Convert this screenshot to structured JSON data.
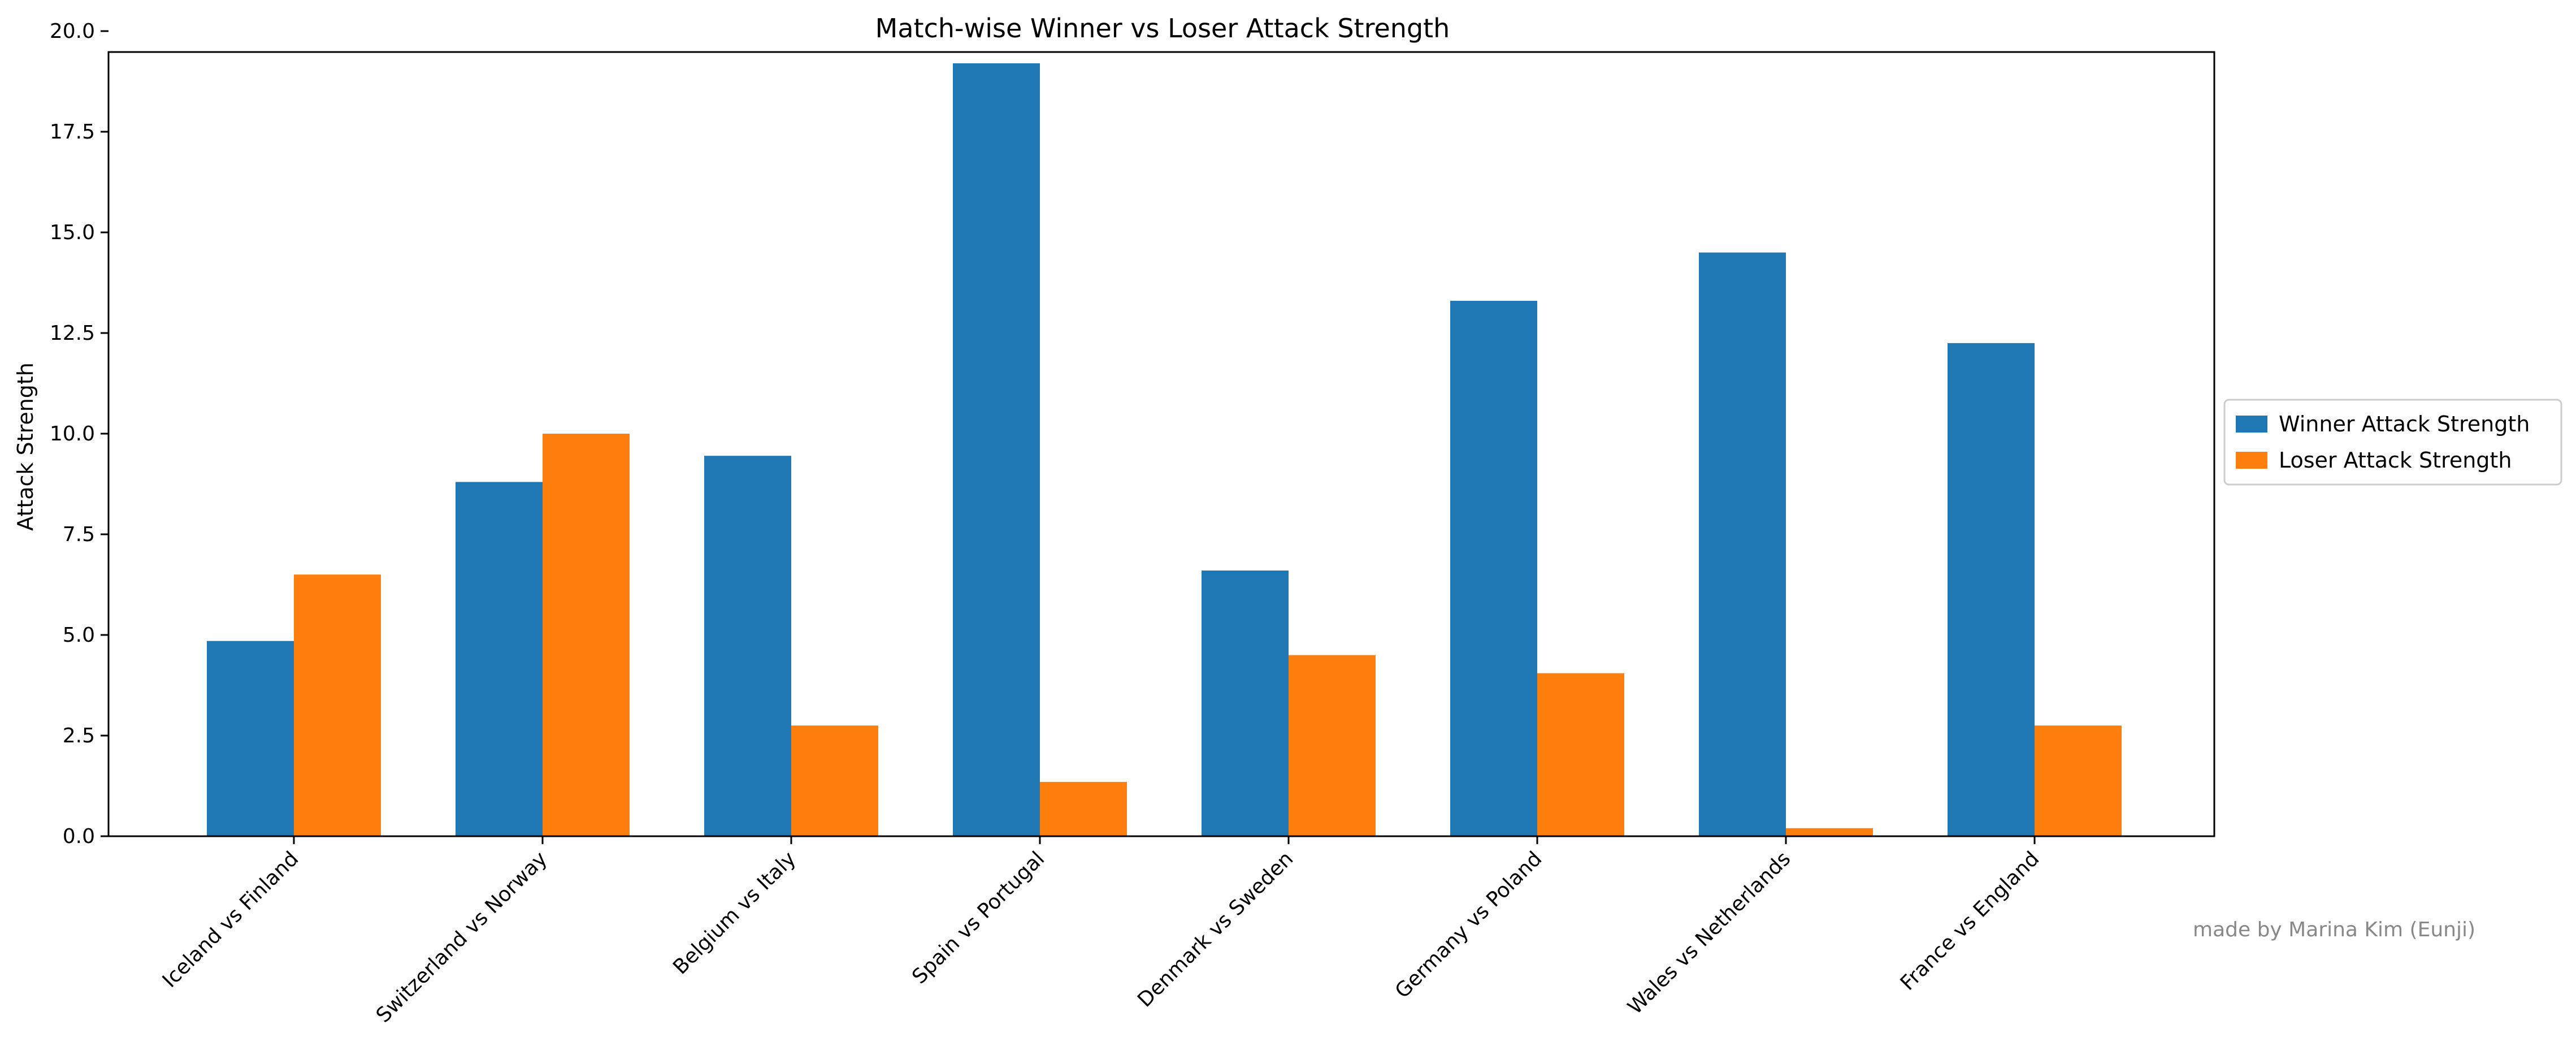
{
  "chart_data": {
    "type": "bar",
    "title": "Match-wise Winner vs Loser Attack Strength",
    "xlabel": "",
    "ylabel": "Attack Strength",
    "categories": [
      "Iceland vs Finland",
      "Switzerland vs Norway",
      "Belgium vs Italy",
      "Spain vs Portugal",
      "Denmark vs Sweden",
      "Germany vs Poland",
      "Wales vs Netherlands",
      "France vs England"
    ],
    "series": [
      {
        "name": "Winner Attack Strength",
        "color": "#1f77b4",
        "values": [
          4.85,
          8.8,
          9.45,
          19.2,
          6.6,
          13.3,
          14.5,
          12.25
        ]
      },
      {
        "name": "Loser Attack Strength",
        "color": "#ff7f0e",
        "values": [
          6.5,
          10.0,
          2.75,
          1.35,
          4.5,
          4.05,
          0.2,
          2.75
        ]
      }
    ],
    "ylim": [
      0,
      20.0
    ],
    "yticks": [
      "0.0",
      "2.5",
      "5.0",
      "7.5",
      "10.0",
      "12.5",
      "15.0",
      "17.5",
      "20.0"
    ],
    "grid": false,
    "legend_position": "center-right outside"
  },
  "annotation": "made by Marina Kim (Eunji)"
}
